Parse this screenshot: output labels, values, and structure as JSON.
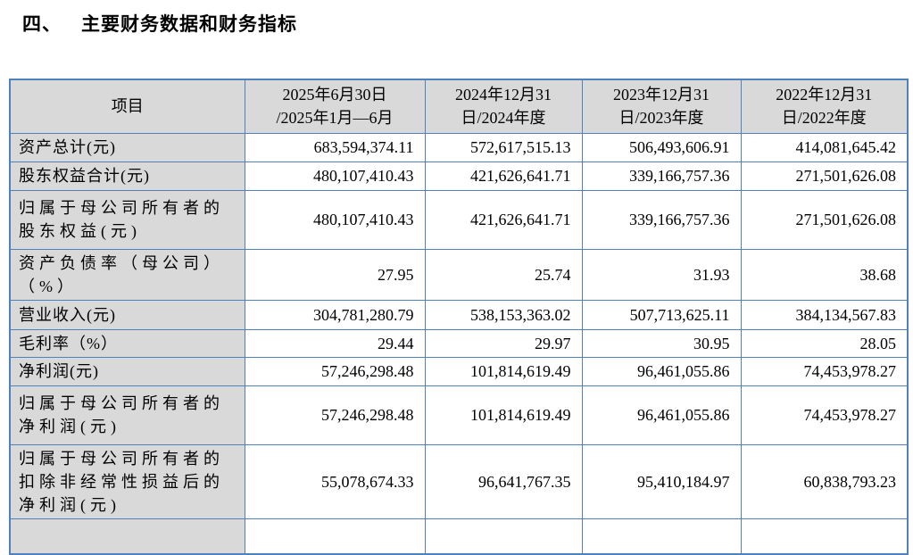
{
  "page": {
    "title_number": "四、",
    "title_text": "主要财务数据和财务指标"
  },
  "colors": {
    "table_border": "#4F81BD",
    "shaded_cell_background": "#D9D9D9",
    "text": "#000000"
  },
  "table": {
    "header": {
      "item_label": "项目",
      "periods": [
        {
          "lines": [
            "2025年6月30日",
            "/2025年1月—6月"
          ]
        },
        {
          "lines": [
            "2024年12月31",
            "日/2024年度"
          ]
        },
        {
          "lines": [
            "2023年12月31",
            "日/2023年度"
          ]
        },
        {
          "lines": [
            "2022年12月31",
            "日/2022年度"
          ]
        }
      ]
    },
    "rows": [
      {
        "lines": [
          "资产总计(元)"
        ],
        "values": [
          "683,594,374.11",
          "572,617,515.13",
          "506,493,606.91",
          "414,081,645.42"
        ]
      },
      {
        "lines": [
          "股东权益合计(元)"
        ],
        "values": [
          "480,107,410.43",
          "421,626,641.71",
          "339,166,757.36",
          "271,501,626.08"
        ]
      },
      {
        "lines": [
          "归属于母公司所有者的",
          "股东权益(元)"
        ],
        "values": [
          "480,107,410.43",
          "421,626,641.71",
          "339,166,757.36",
          "271,501,626.08"
        ]
      },
      {
        "lines": [
          "资产负债率（母公司）",
          "（%）"
        ],
        "values": [
          "27.95",
          "25.74",
          "31.93",
          "38.68"
        ]
      },
      {
        "lines": [
          "营业收入(元)"
        ],
        "values": [
          "304,781,280.79",
          "538,153,363.02",
          "507,713,625.11",
          "384,134,567.83"
        ]
      },
      {
        "lines": [
          "毛利率（%）"
        ],
        "values": [
          "29.44",
          "29.97",
          "30.95",
          "28.05"
        ]
      },
      {
        "lines": [
          "净利润(元)"
        ],
        "values": [
          "57,246,298.48",
          "101,814,619.49",
          "96,461,055.86",
          "74,453,978.27"
        ]
      },
      {
        "lines": [
          "归属于母公司所有者的",
          "净利润(元)"
        ],
        "values": [
          "57,246,298.48",
          "101,814,619.49",
          "96,461,055.86",
          "74,453,978.27"
        ]
      },
      {
        "lines": [
          "归属于母公司所有者的",
          "扣除非经常性损益后的",
          "净利润(元)"
        ],
        "values": [
          "55,078,674.33",
          "96,641,767.35",
          "95,410,184.97",
          "60,838,793.23"
        ]
      }
    ]
  }
}
